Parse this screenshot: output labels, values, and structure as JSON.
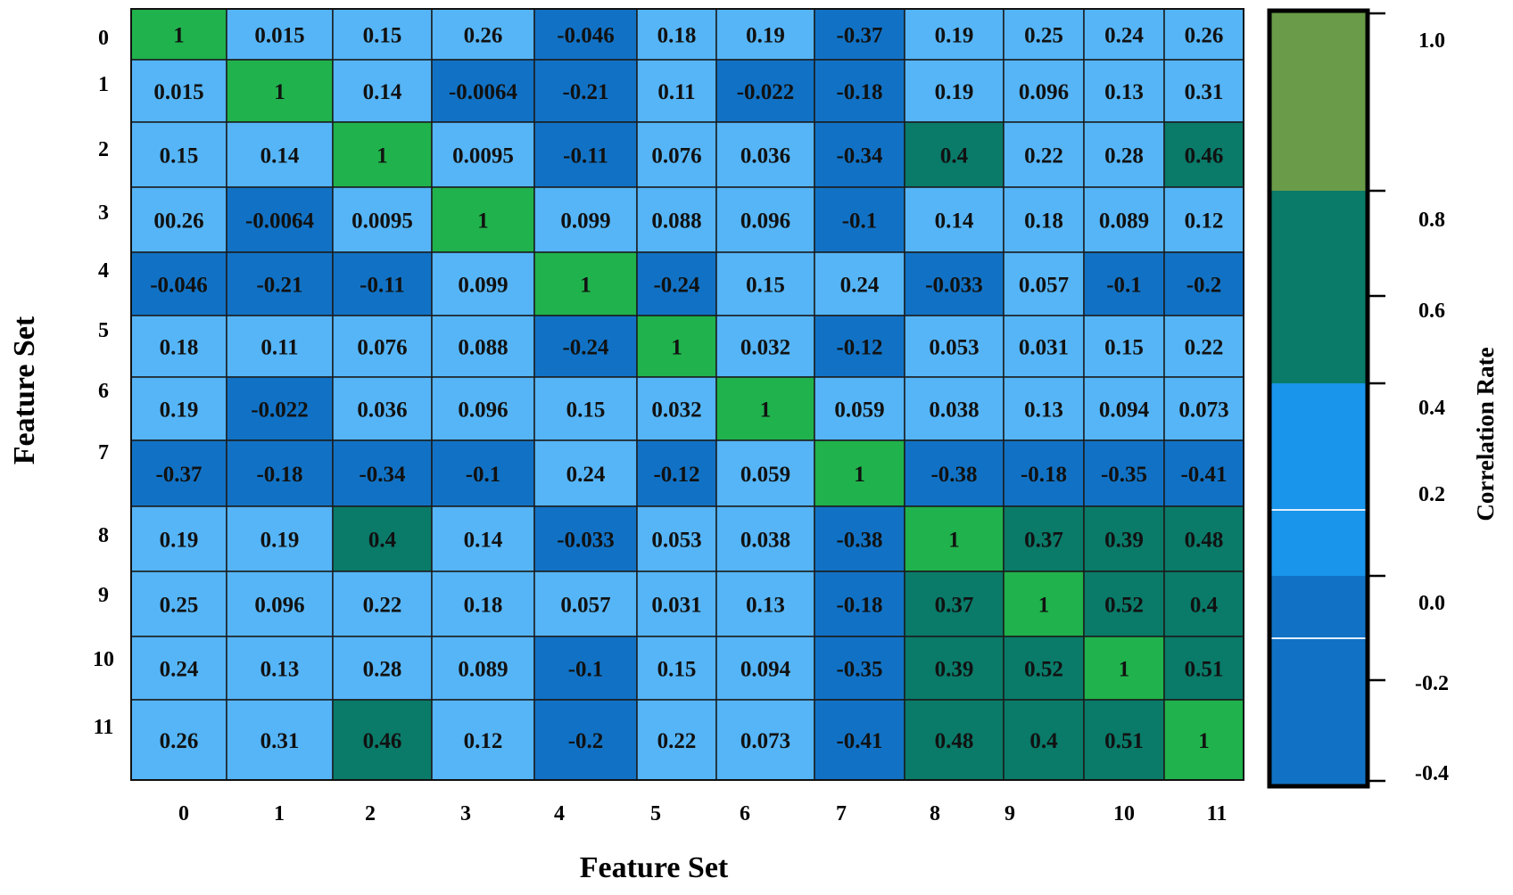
{
  "chart_data": {
    "type": "heatmap",
    "xlabel": "Feature Set",
    "ylabel": "Feature Set",
    "x_categories": [
      "0",
      "1",
      "2",
      "3",
      "4",
      "5",
      "6",
      "7",
      "8",
      "9",
      "10",
      "11"
    ],
    "y_categories": [
      "0",
      "1",
      "2",
      "3",
      "4",
      "5",
      "6",
      "7",
      "8",
      "9",
      "10",
      "11"
    ],
    "cell_labels": [
      [
        "1",
        "0.015",
        "0.15",
        "0.26",
        "-0.046",
        "0.18",
        "0.19",
        "-0.37",
        "0.19",
        "0.25",
        "0.24",
        "0.26"
      ],
      [
        "0.015",
        "1",
        "0.14",
        "-0.0064",
        "-0.21",
        "0.11",
        "-0.022",
        "-0.18",
        "0.19",
        "0.096",
        "0.13",
        "0.31"
      ],
      [
        "0.15",
        "0.14",
        "1",
        "0.0095",
        "-0.11",
        "0.076",
        "0.036",
        "-0.34",
        "0.4",
        "0.22",
        "0.28",
        "0.46"
      ],
      [
        "00.26",
        "-0.0064",
        "0.0095",
        "1",
        "0.099",
        "0.088",
        "0.096",
        "-0.1",
        "0.14",
        "0.18",
        "0.089",
        "0.12"
      ],
      [
        "-0.046",
        "-0.21",
        "-0.11",
        "0.099",
        "1",
        "-0.24",
        "0.15",
        "0.24",
        "-0.033",
        "0.057",
        "-0.1",
        "-0.2"
      ],
      [
        "0.18",
        "0.11",
        "0.076",
        "0.088",
        "-0.24",
        "1",
        "0.032",
        "-0.12",
        "0.053",
        "0.031",
        "0.15",
        "0.22"
      ],
      [
        "0.19",
        "-0.022",
        "0.036",
        "0.096",
        "0.15",
        "0.032",
        "1",
        "0.059",
        "0.038",
        "0.13",
        "0.094",
        "0.073"
      ],
      [
        "-0.37",
        "-0.18",
        "-0.34",
        "-0.1",
        "0.24",
        "-0.12",
        "0.059",
        "1",
        "-0.38",
        "-0.18",
        "-0.35",
        "-0.41"
      ],
      [
        "0.19",
        "0.19",
        "0.4",
        "0.14",
        "-0.033",
        "0.053",
        "0.038",
        "-0.38",
        "1",
        "0.37",
        "0.39",
        "0.48"
      ],
      [
        "0.25",
        "0.096",
        "0.22",
        "0.18",
        "0.057",
        "0.031",
        "0.13",
        "-0.18",
        "0.37",
        "1",
        "0.52",
        "0.4"
      ],
      [
        "0.24",
        "0.13",
        "0.28",
        "0.089",
        "-0.1",
        "0.15",
        "0.094",
        "-0.35",
        "0.39",
        "0.52",
        "1",
        "0.51"
      ],
      [
        "0.26",
        "0.31",
        "0.46",
        "0.12",
        "-0.2",
        "0.22",
        "0.073",
        "-0.41",
        "0.48",
        "0.4",
        "0.51",
        "1"
      ]
    ],
    "colorbar": {
      "title": "Correlation Rate",
      "ticks": [
        "1.0",
        "0.8",
        "0.6",
        "0.4",
        "0.2",
        "0.0",
        "-0.2",
        "-0.4"
      ],
      "range": [
        -0.4,
        1.0
      ]
    },
    "color_classes": {
      "light_blue": "#55b5f7",
      "dark_blue": "#1172c5",
      "teal": "#0a7a69",
      "green": "#20b24c",
      "olive": "#6a9b48",
      "bright_blue": "#1995ec"
    }
  }
}
